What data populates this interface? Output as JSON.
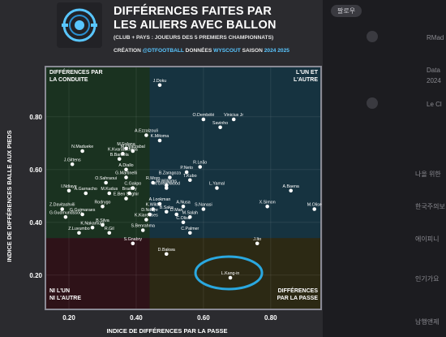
{
  "header": {
    "title_line1": "DIFFÉRENCES FAITES PAR",
    "title_line2": "LES AILIERS AVEC BALLON",
    "subtitle": "(CLUB + PAYS : JOUEURS DES 5 PREMIERS CHAMPIONNATS)",
    "credits_creation": "CRÉATION",
    "credits_author": "@DTFOOTBALL",
    "credits_data": "DONNÉES",
    "credits_source": "WYSCOUT",
    "credits_season": "SAISON",
    "credits_season_value": "2024 2025"
  },
  "sidebar": {
    "pill": "팔로우",
    "items": [
      "RMad",
      "Data",
      "2024",
      "Le Cl",
      "나올 위한",
      "한국주의보",
      "에이피니",
      "인기가요",
      "남행앤제"
    ]
  },
  "chart_data": {
    "type": "scatter",
    "xlabel": "INDICE DE DIFFÉRENCES PAR LA PASSE",
    "ylabel": "INDICE DE DIFFÉRENCES BALLE AUX PIEDS",
    "xlim": [
      0.13,
      0.95
    ],
    "ylim": [
      0.07,
      0.99
    ],
    "x_ticks": [
      0.2,
      0.4,
      0.6,
      0.8
    ],
    "y_ticks": [
      0.2,
      0.4,
      0.6,
      0.8
    ],
    "x_tick_labels": [
      "0.20",
      "0.40",
      "0.60",
      "0.80"
    ],
    "y_tick_labels": [
      "0.20",
      "0.40",
      "0.60",
      "0.80"
    ],
    "x_split": 0.44,
    "y_split": 0.34,
    "quadrant_labels": {
      "top_left": [
        "DIFFÉRENCES PAR",
        "LA CONDUITE"
      ],
      "top_right": [
        "L'UN ET",
        "L'AUTRE"
      ],
      "bottom_left": [
        "NI L'UN",
        "NI L'AUTRE"
      ],
      "bottom_right": [
        "DIFFÉRENCES",
        "PAR LA PASSE"
      ]
    },
    "quadrant_colors": {
      "top_left": "#1a3220",
      "top_right": "#163340",
      "bottom_left": "#2e1218",
      "bottom_right": "#2c2914"
    },
    "point_color": "#ffffff",
    "highlight_color": "#2aa8e0",
    "highlight": "L.Kang-in",
    "points": [
      {
        "name": "J.Doku",
        "x": 0.47,
        "y": 0.92
      },
      {
        "name": "O.Dembélé",
        "x": 0.6,
        "y": 0.79
      },
      {
        "name": "Vinicius Jr",
        "x": 0.69,
        "y": 0.79
      },
      {
        "name": "Savinho",
        "x": 0.65,
        "y": 0.76
      },
      {
        "name": "A.Ezzalzouli",
        "x": 0.43,
        "y": 0.73
      },
      {
        "name": "K.Mitoma",
        "x": 0.47,
        "y": 0.71
      },
      {
        "name": "M.Fofana",
        "x": 0.37,
        "y": 0.68
      },
      {
        "name": "M.Oyarzabal",
        "x": 0.39,
        "y": 0.67
      },
      {
        "name": "N.Madueke",
        "x": 0.24,
        "y": 0.67
      },
      {
        "name": "K.Kvaratskhelia",
        "x": 0.36,
        "y": 0.66
      },
      {
        "name": "B.Barcola",
        "x": 0.35,
        "y": 0.64
      },
      {
        "name": "J.Gittens",
        "x": 0.21,
        "y": 0.62
      },
      {
        "name": "A.Diallo",
        "x": 0.37,
        "y": 0.6
      },
      {
        "name": "R.Leão",
        "x": 0.59,
        "y": 0.61
      },
      {
        "name": "P.Neto",
        "x": 0.55,
        "y": 0.59
      },
      {
        "name": "B.Zaragoza",
        "x": 0.5,
        "y": 0.57
      },
      {
        "name": "G.Martinelli",
        "x": 0.37,
        "y": 0.57
      },
      {
        "name": "T.Kubo",
        "x": 0.56,
        "y": 0.56
      },
      {
        "name": "R.Moro",
        "x": 0.45,
        "y": 0.55
      },
      {
        "name": "M.Williams",
        "x": 0.49,
        "y": 0.54
      },
      {
        "name": "O.Sahraoui",
        "x": 0.31,
        "y": 0.55
      },
      {
        "name": "C.Gakpo",
        "x": 0.39,
        "y": 0.53
      },
      {
        "name": "M.Greenwood",
        "x": 0.49,
        "y": 0.53
      },
      {
        "name": "L.Yamal",
        "x": 0.64,
        "y": 0.53
      },
      {
        "name": "A.Baena",
        "x": 0.86,
        "y": 0.52
      },
      {
        "name": "I.Ndiaye",
        "x": 0.2,
        "y": 0.52
      },
      {
        "name": "A.Garnacho",
        "x": 0.25,
        "y": 0.51
      },
      {
        "name": "M.Kudus",
        "x": 0.32,
        "y": 0.51
      },
      {
        "name": "Bradley",
        "x": 0.38,
        "y": 0.51
      },
      {
        "name": "E.Ben Seghir",
        "x": 0.37,
        "y": 0.49
      },
      {
        "name": "A.Lookman",
        "x": 0.47,
        "y": 0.47
      },
      {
        "name": "X.Simon",
        "x": 0.79,
        "y": 0.46
      },
      {
        "name": "M.Olise",
        "x": 0.93,
        "y": 0.45
      },
      {
        "name": "Z.Davitashvili",
        "x": 0.18,
        "y": 0.45
      },
      {
        "name": "Rodrygo",
        "x": 0.3,
        "y": 0.46
      },
      {
        "name": "K.Wilds",
        "x": 0.45,
        "y": 0.45
      },
      {
        "name": "A.Nusa",
        "x": 0.54,
        "y": 0.46
      },
      {
        "name": "S.Nanasi",
        "x": 0.6,
        "y": 0.45
      },
      {
        "name": "B.Saka",
        "x": 0.49,
        "y": 0.44
      },
      {
        "name": "G.Guimaraes",
        "x": 0.24,
        "y": 0.43
      },
      {
        "name": "D.Ndoye",
        "x": 0.44,
        "y": 0.43
      },
      {
        "name": "D.Man",
        "x": 0.52,
        "y": 0.43
      },
      {
        "name": "M.Salah",
        "x": 0.56,
        "y": 0.42
      },
      {
        "name": "G.Gudmundsson",
        "x": 0.19,
        "y": 0.42
      },
      {
        "name": "K.Kiaroubes",
        "x": 0.43,
        "y": 0.41
      },
      {
        "name": "C.Olise",
        "x": 0.54,
        "y": 0.4
      },
      {
        "name": "B.Silva",
        "x": 0.3,
        "y": 0.39
      },
      {
        "name": "K.Nakamura",
        "x": 0.27,
        "y": 0.38
      },
      {
        "name": "Z.Luvumbo",
        "x": 0.23,
        "y": 0.36
      },
      {
        "name": "R.Gil",
        "x": 0.32,
        "y": 0.36
      },
      {
        "name": "S.Benrahma",
        "x": 0.42,
        "y": 0.37
      },
      {
        "name": "C.Palmer",
        "x": 0.56,
        "y": 0.36
      },
      {
        "name": "J.Ito",
        "x": 0.76,
        "y": 0.32
      },
      {
        "name": "S.Gnabry",
        "x": 0.39,
        "y": 0.32
      },
      {
        "name": "D.Bakwa",
        "x": 0.49,
        "y": 0.28
      },
      {
        "name": "L.Kang-in",
        "x": 0.68,
        "y": 0.19
      }
    ]
  }
}
